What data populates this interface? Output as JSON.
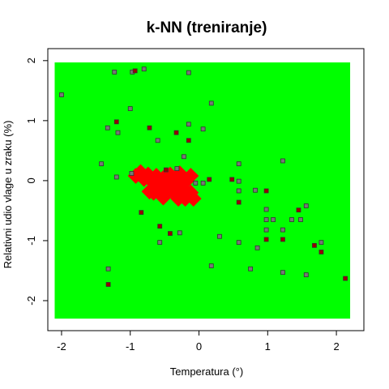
{
  "chart_data": {
    "type": "scatter",
    "title": "k-NN (treniranje)",
    "xlabel": "Temperatura (°)",
    "ylabel": "Relativni udio vlage u zraku (%)",
    "xlim": [
      -2.2,
      2.4
    ],
    "ylim": [
      -2.5,
      2.2
    ],
    "x_ticks": [
      -2,
      -1,
      0,
      1,
      2
    ],
    "x_tick_labels": [
      "-2",
      "-1",
      "0",
      "1",
      "2"
    ],
    "y_ticks": [
      -2,
      -1,
      0,
      1,
      2
    ],
    "y_tick_labels": [
      "-2",
      "-1",
      "0",
      "1",
      "2"
    ],
    "grid": false,
    "legend": "none",
    "colors": {
      "class_green": "#00ff00",
      "class_red": "#ff0000",
      "point_border": "#333333",
      "point_fill_green_region": "#777777",
      "point_fill_red_region": "#990000"
    },
    "decision_regions": {
      "green": {
        "x": [
          -2.1,
          2.2
        ],
        "y": [
          -2.3,
          1.97
        ]
      },
      "red": [
        {
          "x": -0.92,
          "y": 0.08
        },
        {
          "x": -0.85,
          "y": 0.14
        },
        {
          "x": -0.8,
          "y": 0.03
        },
        {
          "x": -0.74,
          "y": 0.1
        },
        {
          "x": -0.68,
          "y": -0.02
        },
        {
          "x": -0.62,
          "y": 0.08
        },
        {
          "x": -0.66,
          "y": -0.2
        },
        {
          "x": -0.58,
          "y": -0.1
        },
        {
          "x": -0.52,
          "y": 0.04
        },
        {
          "x": -0.5,
          "y": -0.18
        },
        {
          "x": -0.44,
          "y": -0.08
        },
        {
          "x": -0.42,
          "y": 0.1
        },
        {
          "x": -0.36,
          "y": -0.2
        },
        {
          "x": -0.34,
          "y": 0.02
        },
        {
          "x": -0.28,
          "y": 0.12
        },
        {
          "x": -0.24,
          "y": -0.12
        },
        {
          "x": -0.2,
          "y": -0.3
        },
        {
          "x": -0.18,
          "y": 0.0
        },
        {
          "x": -0.12,
          "y": -0.2
        },
        {
          "x": -0.12,
          "y": 0.08
        },
        {
          "x": -0.08,
          "y": -0.3
        },
        {
          "x": -0.3,
          "y": -0.3
        },
        {
          "x": -0.52,
          "y": -0.28
        },
        {
          "x": -0.72,
          "y": -0.18
        }
      ]
    },
    "series": [
      {
        "class": "green",
        "points": [
          {
            "x": -2.0,
            "y": 1.43
          },
          {
            "x": -1.23,
            "y": 1.81
          },
          {
            "x": -0.97,
            "y": 1.81
          },
          {
            "x": -0.8,
            "y": 1.86
          },
          {
            "x": -0.15,
            "y": 1.8
          },
          {
            "x": 0.18,
            "y": 1.29
          },
          {
            "x": -1.33,
            "y": 0.88
          },
          {
            "x": -1.18,
            "y": 0.8
          },
          {
            "x": -1.0,
            "y": 1.2
          },
          {
            "x": -0.6,
            "y": 0.67
          },
          {
            "x": -0.15,
            "y": 0.94
          },
          {
            "x": 0.06,
            "y": 0.86
          },
          {
            "x": -0.22,
            "y": 0.4
          },
          {
            "x": -1.42,
            "y": 0.28
          },
          {
            "x": -1.2,
            "y": 0.06
          },
          {
            "x": -0.98,
            "y": 0.12
          },
          {
            "x": -0.32,
            "y": 0.2
          },
          {
            "x": -0.05,
            "y": -0.04
          },
          {
            "x": 0.06,
            "y": -0.04
          },
          {
            "x": 0.58,
            "y": 0.28
          },
          {
            "x": 0.58,
            "y": -0.01
          },
          {
            "x": 0.82,
            "y": -0.16
          },
          {
            "x": 1.22,
            "y": 0.33
          },
          {
            "x": 0.58,
            "y": -0.17
          },
          {
            "x": 0.98,
            "y": -0.48
          },
          {
            "x": 0.98,
            "y": -0.65
          },
          {
            "x": 1.08,
            "y": -0.65
          },
          {
            "x": 1.22,
            "y": -0.82
          },
          {
            "x": 1.35,
            "y": -0.65
          },
          {
            "x": 1.48,
            "y": -0.65
          },
          {
            "x": 1.56,
            "y": -0.42
          },
          {
            "x": 0.3,
            "y": -0.93
          },
          {
            "x": 0.58,
            "y": -1.03
          },
          {
            "x": 0.98,
            "y": -0.82
          },
          {
            "x": 0.85,
            "y": -1.12
          },
          {
            "x": -0.28,
            "y": -0.87
          },
          {
            "x": -0.57,
            "y": -1.03
          },
          {
            "x": 1.78,
            "y": -1.03
          },
          {
            "x": 1.22,
            "y": -1.53
          },
          {
            "x": 1.56,
            "y": -1.57
          },
          {
            "x": 0.18,
            "y": -1.42
          },
          {
            "x": 0.75,
            "y": -1.47
          },
          {
            "x": -1.32,
            "y": -1.47
          }
        ]
      },
      {
        "class": "red",
        "points": [
          {
            "x": -0.93,
            "y": 1.83
          },
          {
            "x": -1.2,
            "y": 0.98
          },
          {
            "x": -0.72,
            "y": 0.88
          },
          {
            "x": -0.33,
            "y": 0.8
          },
          {
            "x": -0.15,
            "y": 0.67
          },
          {
            "x": -0.48,
            "y": 0.18
          },
          {
            "x": 0.15,
            "y": 0.02
          },
          {
            "x": 0.48,
            "y": 0.02
          },
          {
            "x": 0.98,
            "y": -0.17
          },
          {
            "x": 0.58,
            "y": -0.36
          },
          {
            "x": 1.45,
            "y": -0.49
          },
          {
            "x": -0.57,
            "y": -0.76
          },
          {
            "x": -0.42,
            "y": -0.88
          },
          {
            "x": -0.84,
            "y": -0.53
          },
          {
            "x": 0.98,
            "y": -0.98
          },
          {
            "x": 1.22,
            "y": -0.98
          },
          {
            "x": 1.68,
            "y": -1.08
          },
          {
            "x": 1.78,
            "y": -1.19
          },
          {
            "x": 2.13,
            "y": -1.63
          },
          {
            "x": -1.32,
            "y": -1.73
          }
        ]
      }
    ]
  }
}
